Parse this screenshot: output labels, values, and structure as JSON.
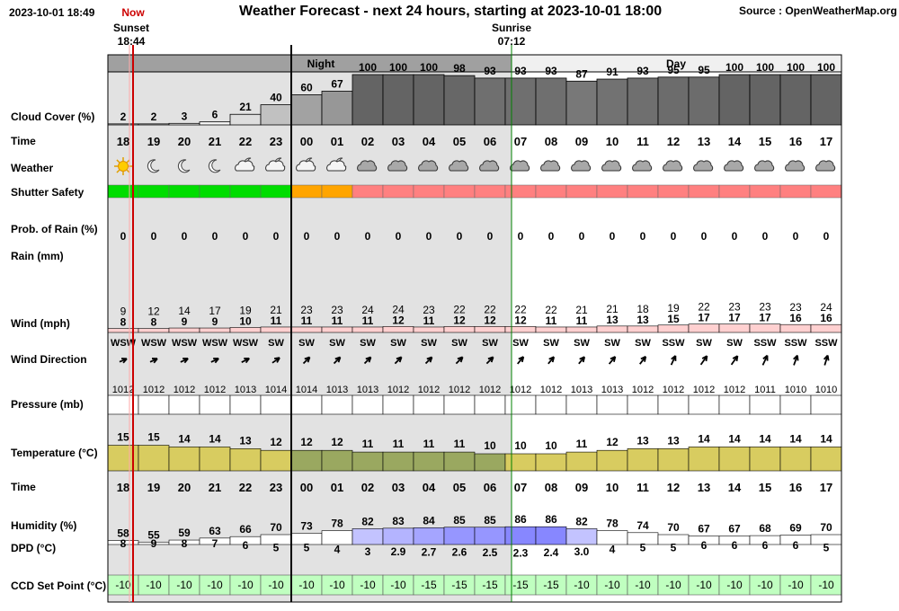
{
  "header": {
    "datetime": "2023-10-01 18:49",
    "title": "Weather Forecast - next 24 hours, starting at 2023-10-01 18:00",
    "source": "Source : OpenWeatherMap.org",
    "now_label": "Now",
    "sunset_label": "Sunset",
    "sunset_time": "18:44",
    "sunrise_label": "Sunrise",
    "sunrise_time": "07:12",
    "night_label": "Night",
    "day_label": "Day"
  },
  "colors": {
    "night_bg": "#e2e2e2",
    "day_bg": "#ffffff",
    "night_band": "#a0a0a0",
    "day_band": "#f0f0f0",
    "now_line": "#cc0000",
    "safe_green": "#00dd00",
    "caution_orange": "#ffa500",
    "unsafe_red": "#ff8080",
    "wind_fill": "#ffd0d0",
    "temp_day": "#d8cc60",
    "temp_night": "#9aa860",
    "ccd_fill": "#c0ffc0"
  },
  "chart_data": {
    "type": "table",
    "hours": [
      "18",
      "19",
      "20",
      "21",
      "22",
      "23",
      "00",
      "01",
      "02",
      "03",
      "04",
      "05",
      "06",
      "07",
      "08",
      "09",
      "10",
      "11",
      "12",
      "13",
      "14",
      "15",
      "16",
      "17"
    ],
    "row_labels": {
      "cloud": "Cloud Cover (%)",
      "time": "Time",
      "weather": "Weather",
      "shutter": "Shutter Safety",
      "rain_prob": "Prob. of Rain (%)",
      "rain": "Rain (mm)",
      "wind": "Wind (mph)",
      "wind_dir": "Wind Direction",
      "pressure": "Pressure (mb)",
      "temp": "Temperature (°C)",
      "time2": "Time",
      "humidity": "Humidity (%)",
      "dpd": "DPD (°C)",
      "ccd": "CCD Set Point (°C)"
    },
    "cloud_cover": [
      2,
      2,
      3,
      6,
      21,
      40,
      60,
      67,
      100,
      100,
      100,
      98,
      93,
      93,
      93,
      87,
      91,
      93,
      95,
      95,
      100,
      100,
      100,
      100
    ],
    "weather_icons": [
      "sun-icon",
      "moon-icon",
      "moon-icon",
      "moon-icon",
      "moon-cloud-icon",
      "moon-cloud-icon",
      "moon-cloud-icon",
      "moon-cloud-icon",
      "cloud-icon",
      "cloud-icon",
      "cloud-icon",
      "cloud-icon",
      "cloud-icon",
      "cloud-icon",
      "cloud-icon",
      "cloud-icon",
      "cloud-icon",
      "cloud-icon",
      "cloud-icon",
      "cloud-icon",
      "cloud-icon",
      "cloud-icon",
      "cloud-icon",
      "cloud-icon"
    ],
    "shutter_safety": [
      "safe",
      "safe",
      "safe",
      "safe",
      "safe",
      "safe",
      "caution",
      "caution",
      "unsafe",
      "unsafe",
      "unsafe",
      "unsafe",
      "unsafe",
      "unsafe",
      "unsafe",
      "unsafe",
      "unsafe",
      "unsafe",
      "unsafe",
      "unsafe",
      "unsafe",
      "unsafe",
      "unsafe",
      "unsafe"
    ],
    "rain_prob": [
      0,
      0,
      0,
      0,
      0,
      0,
      0,
      0,
      0,
      0,
      0,
      0,
      0,
      0,
      0,
      0,
      0,
      0,
      0,
      0,
      0,
      0,
      0,
      0
    ],
    "wind_gust": [
      9,
      12,
      14,
      17,
      19,
      21,
      23,
      23,
      24,
      24,
      23,
      22,
      22,
      22,
      22,
      21,
      21,
      18,
      19,
      22,
      23,
      23,
      23,
      24
    ],
    "wind_speed": [
      8,
      8,
      9,
      9,
      10,
      11,
      11,
      11,
      11,
      12,
      11,
      12,
      12,
      12,
      11,
      11,
      13,
      13,
      15,
      17,
      17,
      17,
      16,
      16
    ],
    "wind_dir": [
      "WSW",
      "WSW",
      "WSW",
      "WSW",
      "WSW",
      "SW",
      "SW",
      "SW",
      "SW",
      "SW",
      "SW",
      "SW",
      "SW",
      "SW",
      "SW",
      "SW",
      "SW",
      "SW",
      "SSW",
      "SW",
      "SW",
      "SSW",
      "SSW",
      "SSW"
    ],
    "wind_deg": [
      247,
      245,
      245,
      245,
      243,
      235,
      225,
      225,
      225,
      225,
      225,
      225,
      225,
      220,
      220,
      220,
      220,
      218,
      205,
      215,
      215,
      205,
      200,
      197
    ],
    "pressure": [
      1012,
      1012,
      1012,
      1012,
      1013,
      1014,
      1014,
      1013,
      1013,
      1012,
      1012,
      1012,
      1012,
      1012,
      1012,
      1013,
      1013,
      1012,
      1012,
      1012,
      1012,
      1011,
      1010,
      1010
    ],
    "temperature": [
      15,
      15,
      14,
      14,
      13,
      12,
      12,
      12,
      11,
      11,
      11,
      11,
      10,
      10,
      10,
      11,
      12,
      13,
      13,
      14,
      14,
      14,
      14,
      14
    ],
    "humidity": [
      58,
      55,
      59,
      63,
      66,
      70,
      73,
      78,
      82,
      83,
      84,
      85,
      85,
      86,
      86,
      82,
      78,
      74,
      70,
      67,
      67,
      68,
      69,
      70
    ],
    "dpd": [
      "8",
      "9",
      "8",
      "7",
      "6",
      "5",
      "5",
      "4",
      "3",
      "2.9",
      "2.7",
      "2.6",
      "2.5",
      "2.3",
      "2.4",
      "3.0",
      "4",
      "5",
      "5",
      "6",
      "6",
      "6",
      "6",
      "5"
    ],
    "ccd_set_point": [
      -10,
      -10,
      -10,
      -10,
      -10,
      -10,
      -10,
      -10,
      -10,
      -10,
      -15,
      -15,
      -15,
      -15,
      -15,
      -10,
      -10,
      -10,
      -10,
      -10,
      -10,
      -10,
      -10,
      -10
    ]
  }
}
